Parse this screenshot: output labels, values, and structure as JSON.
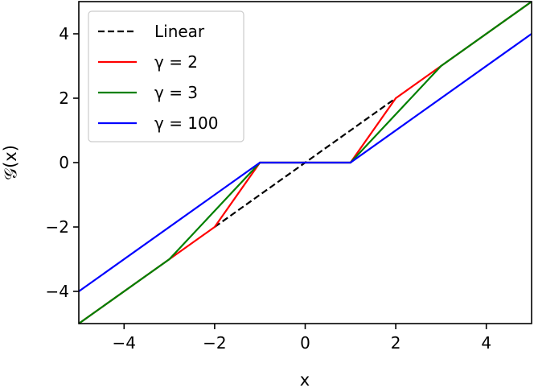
{
  "chart_data": {
    "type": "line",
    "title": "",
    "xlabel": "x",
    "ylabel": "𝒢(x)",
    "xlim": [
      -5,
      5
    ],
    "ylim": [
      -5,
      5
    ],
    "xticks": [
      -4,
      -2,
      0,
      2,
      4
    ],
    "yticks": [
      -4,
      -2,
      0,
      2,
      4
    ],
    "xtick_labels": [
      "−4",
      "−2",
      "0",
      "2",
      "4"
    ],
    "ytick_labels": [
      "−4",
      "−2",
      "0",
      "2",
      "4"
    ],
    "grid": false,
    "legend_position": "top-left",
    "series": [
      {
        "name": "Linear",
        "color": "#000000",
        "dash": "dashed",
        "x": [
          -2,
          2
        ],
        "y": [
          -2,
          2
        ]
      },
      {
        "name": "γ = 2",
        "color": "#ff0000",
        "dash": "solid",
        "x": [
          -5,
          -3,
          -2,
          -1,
          1,
          2,
          3,
          5
        ],
        "y": [
          -5,
          -3,
          -2,
          0,
          0,
          2,
          3,
          5
        ]
      },
      {
        "name": "γ = 3",
        "color": "#008000",
        "dash": "solid",
        "x": [
          -5,
          -3,
          -1,
          1,
          3,
          5
        ],
        "y": [
          -5,
          -3,
          0,
          0,
          3,
          5
        ]
      },
      {
        "name": "γ = 100",
        "color": "#0000ff",
        "dash": "solid",
        "x": [
          -5,
          -1,
          1,
          5
        ],
        "y": [
          -4,
          0,
          0,
          4
        ]
      }
    ]
  }
}
